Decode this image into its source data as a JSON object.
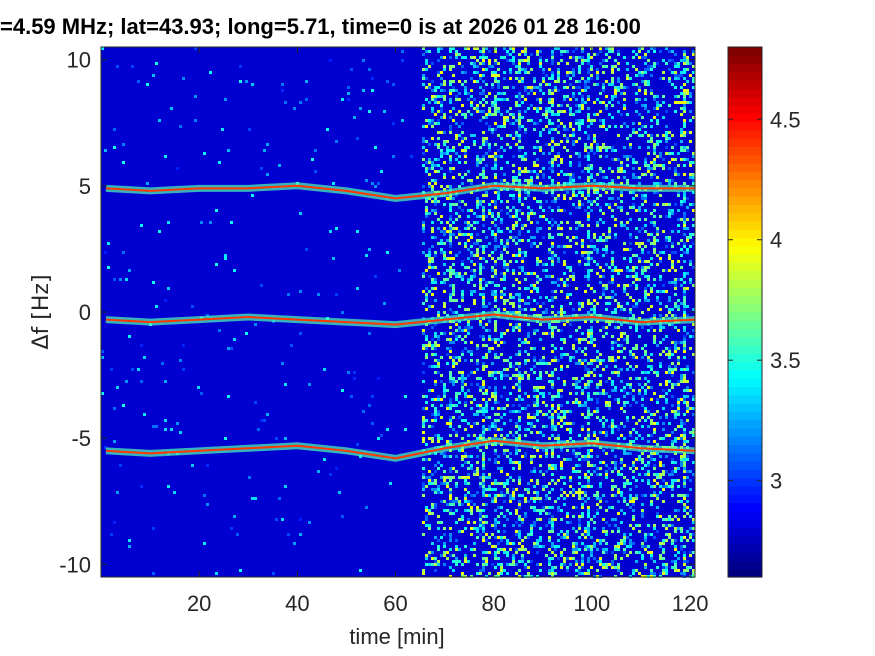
{
  "chart_data": {
    "type": "heatmap",
    "title": "=4.59 MHz;  lat=43.93; long=5.71, time=0 is at 2026 01 28 16:00",
    "xlabel": "time [min]",
    "ylabel": "Δf [Hz]",
    "xlim": [
      0,
      121
    ],
    "ylim": [
      -10.5,
      10.5
    ],
    "x_ticks": [
      20,
      40,
      60,
      80,
      100,
      120
    ],
    "x_tick_labels": [
      "20",
      "40",
      "60",
      "80",
      "100",
      "120"
    ],
    "y_ticks": [
      10,
      5,
      0,
      -5,
      -10
    ],
    "y_tick_labels": [
      "10",
      "5",
      "0",
      "-5",
      "-10"
    ],
    "colorbar": {
      "range": [
        2.6,
        4.8
      ],
      "ticks": [
        3,
        3.5,
        4,
        4.5
      ],
      "tick_labels": [
        "3",
        "3.5",
        "4",
        "4.5"
      ],
      "colormap": "jet"
    },
    "noise_onset_min": 65,
    "series": [
      {
        "x": [
          1,
          10,
          20,
          30,
          40,
          50,
          60,
          70,
          80,
          90,
          100,
          110,
          121
        ],
        "y": [
          4.9,
          4.8,
          4.9,
          4.9,
          5.0,
          4.8,
          4.5,
          4.7,
          5.0,
          4.9,
          5.0,
          4.9,
          4.9
        ]
      },
      {
        "x": [
          1,
          10,
          20,
          30,
          40,
          50,
          60,
          70,
          80,
          90,
          100,
          110,
          121
        ],
        "y": [
          -0.3,
          -0.4,
          -0.3,
          -0.2,
          -0.3,
          -0.4,
          -0.5,
          -0.3,
          -0.1,
          -0.3,
          -0.2,
          -0.4,
          -0.3
        ]
      },
      {
        "x": [
          1,
          10,
          20,
          30,
          40,
          50,
          60,
          70,
          80,
          90,
          100,
          110,
          121
        ],
        "y": [
          -5.5,
          -5.6,
          -5.5,
          -5.4,
          -5.3,
          -5.5,
          -5.8,
          -5.4,
          -5.1,
          -5.3,
          -5.2,
          -5.4,
          -5.5
        ]
      }
    ]
  }
}
